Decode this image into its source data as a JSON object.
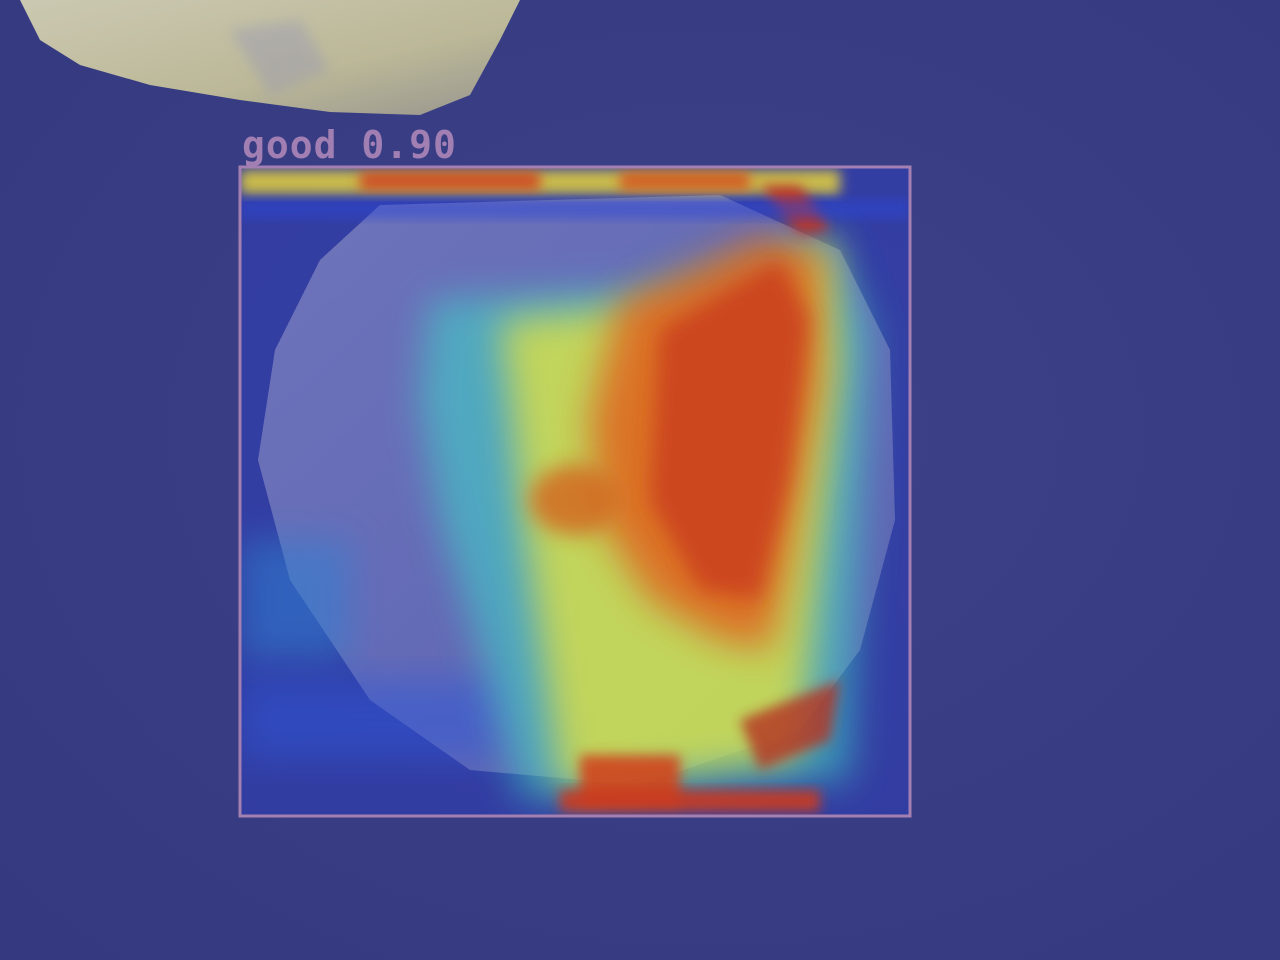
{
  "detection": {
    "class_label": "good",
    "confidence": "0.90",
    "box_color": "#a47fb1",
    "label_color": "#a27fb3"
  },
  "colors": {
    "background": "#3a3f86",
    "heat_low": "#2b3fd0",
    "heat_mid": "#e6e63a",
    "heat_high": "#d8401c"
  }
}
